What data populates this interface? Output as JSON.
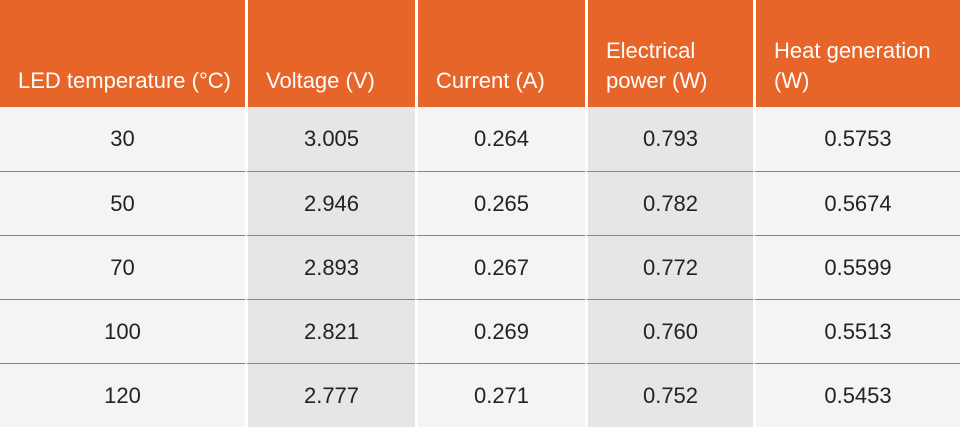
{
  "chart_data": {
    "type": "table",
    "columns": [
      "LED temperature (°C)",
      "Voltage (V)",
      "Current (A)",
      "Electrical power (W)",
      "Heat generation (W)"
    ],
    "rows": [
      [
        "30",
        "3.005",
        "0.264",
        "0.793",
        "0.5753"
      ],
      [
        "50",
        "2.946",
        "0.265",
        "0.782",
        "0.5674"
      ],
      [
        "70",
        "2.893",
        "0.267",
        "0.772",
        "0.5599"
      ],
      [
        "100",
        "2.821",
        "0.269",
        "0.760",
        "0.5513"
      ],
      [
        "120",
        "2.777",
        "0.271",
        "0.752",
        "0.5453"
      ]
    ]
  },
  "colors": {
    "header_background": "#e8652a",
    "header_text": "#ffffff",
    "row_background": "#f4f4f4",
    "shaded_column_background": "#e6e6e6",
    "row_divider": "#e8652a"
  }
}
